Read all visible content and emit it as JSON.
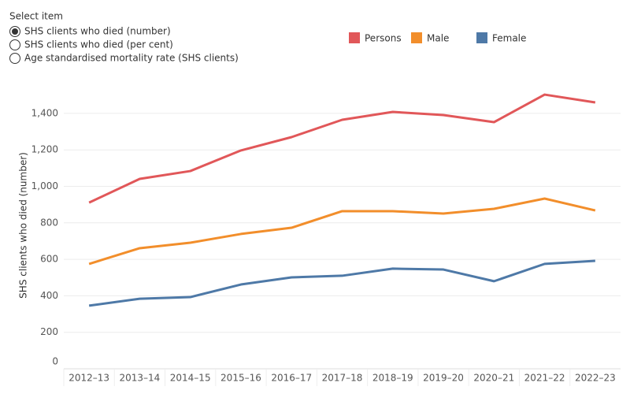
{
  "controls": {
    "title": "Select item",
    "options": [
      "SHS clients who died (number)",
      "SHS clients who died (per cent)",
      "Age standardised mortality rate (SHS clients)"
    ],
    "selected": 0
  },
  "chart_data": {
    "type": "line",
    "y_label": "SHS clients who died (number)",
    "categories": [
      "2012–13",
      "2013–14",
      "2014–15",
      "2015–16",
      "2016–17",
      "2017–18",
      "2018–19",
      "2019–20",
      "2020–21",
      "2021–22",
      "2022–23"
    ],
    "series": [
      {
        "name": "Persons",
        "color": "#e15759",
        "values": [
          911,
          1041,
          1084,
          1197,
          1270,
          1365,
          1408,
          1391,
          1352,
          1503,
          1460
        ]
      },
      {
        "name": "Male",
        "color": "#f28e2b",
        "values": [
          575,
          661,
          691,
          739,
          773,
          864,
          864,
          851,
          877,
          933,
          868
        ]
      },
      {
        "name": "Female",
        "color": "#4e79a7",
        "values": [
          346,
          384,
          393,
          462,
          501,
          510,
          549,
          544,
          480,
          575,
          592
        ]
      }
    ],
    "ylim": [
      0,
      1568
    ],
    "yticks": [
      0,
      200,
      400,
      600,
      800,
      {
        "value": 1000,
        "label": "1,000"
      },
      {
        "value": 1200,
        "label": "1,200"
      },
      {
        "value": 1400,
        "label": "1,400"
      }
    ],
    "grid": true
  }
}
